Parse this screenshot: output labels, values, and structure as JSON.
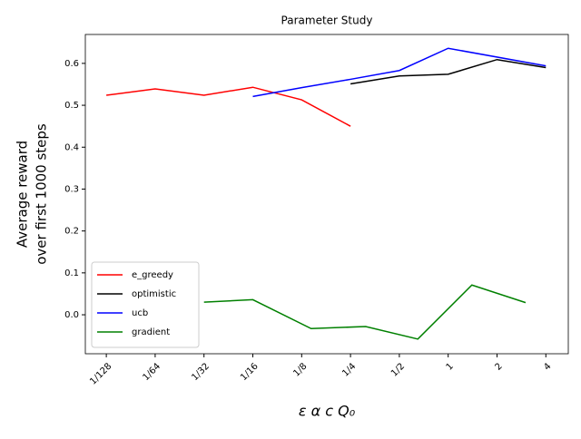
{
  "chart_data": {
    "type": "line",
    "title": "Parameter Study",
    "xlabel": "ε   α   c   Q₀",
    "ylabel": [
      "Average reward",
      "over first 1000 steps"
    ],
    "xscale": "log2",
    "xlim": [
      0.0058,
      5.5
    ],
    "xticks": [
      {
        "value": 0.0078125,
        "label": "1/128"
      },
      {
        "value": 0.015625,
        "label": "1/64"
      },
      {
        "value": 0.03125,
        "label": "1/32"
      },
      {
        "value": 0.0625,
        "label": "1/16"
      },
      {
        "value": 0.125,
        "label": "1/8"
      },
      {
        "value": 0.25,
        "label": "1/4"
      },
      {
        "value": 0.5,
        "label": "1/2"
      },
      1,
      2,
      4
    ],
    "ylim": [
      -0.093,
      0.669
    ],
    "yticks": [
      {
        "value": 0,
        "label": "0.0"
      },
      {
        "value": 0.1,
        "label": "0.1"
      },
      {
        "value": 0.2,
        "label": "0.2"
      },
      {
        "value": 0.3,
        "label": "0.3"
      },
      {
        "value": 0.4,
        "label": "0.4"
      },
      {
        "value": 0.5,
        "label": "0.5"
      },
      {
        "value": 0.6,
        "label": "0.6"
      }
    ],
    "legend": "lower left",
    "series": [
      {
        "name": "e_greedy",
        "color": "#ff0000",
        "x": [
          0.0078125,
          0.015625,
          0.03125,
          0.0625,
          0.125,
          0.25
        ],
        "values": [
          0.524,
          0.539,
          0.524,
          0.543,
          0.513,
          0.45
        ]
      },
      {
        "name": "optimistic",
        "color": "#000000",
        "x": [
          0.25,
          0.5,
          1,
          2,
          4
        ],
        "values": [
          0.551,
          0.57,
          0.574,
          0.609,
          0.59
        ]
      },
      {
        "name": "ucb",
        "color": "#0000ff",
        "x": [
          0.0625,
          0.125,
          0.25,
          0.5,
          1,
          4
        ],
        "values": [
          0.521,
          0.542,
          0.562,
          0.583,
          0.636,
          0.594
        ]
      },
      {
        "name": "gradient",
        "color": "#008000",
        "x": [
          0.03125,
          0.0625,
          0.143,
          0.31,
          0.65,
          1.4,
          3.0
        ],
        "values": [
          0.03,
          0.036,
          -0.033,
          -0.028,
          -0.058,
          0.071,
          0.029
        ]
      }
    ]
  }
}
